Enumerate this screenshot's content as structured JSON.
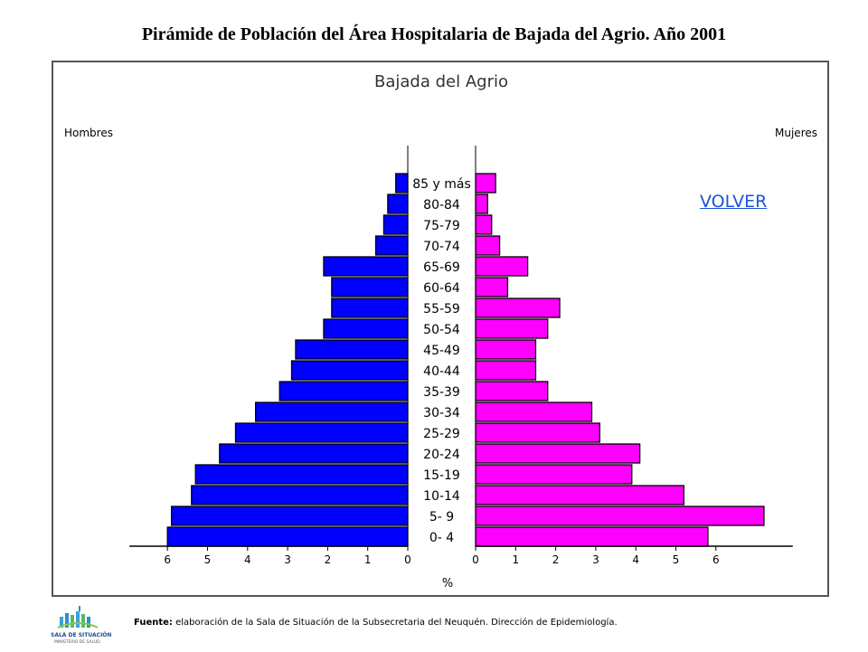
{
  "slide": {
    "title": "Pirámide de Población del Área Hospitalaria de Bajada del Agrio. Año 2001",
    "volver_label": "VOLVER",
    "footer_label": "Fuente:",
    "footer_text": " elaboración de la Sala de Situación de la Subsecretaria del Neuquén. Dirección de Epidemiología.",
    "logo_text": "SALA DE SITUACIÓN",
    "logo_subtext": "MINISTERIO DE SALUD"
  },
  "colors": {
    "men": "#0000ff",
    "women": "#ff00ff",
    "link": "#1a56d6"
  },
  "chart_data": {
    "type": "bar",
    "orientation": "horizontal-pyramid",
    "title": "Bajada del Agrio",
    "left_label": "Hombres",
    "right_label": "Mujeres",
    "xlabel": "%",
    "xlim": [
      0,
      6
    ],
    "xticks": [
      0,
      1,
      2,
      3,
      4,
      5,
      6
    ],
    "categories": [
      "0- 4",
      "5- 9",
      "10-14",
      "15-19",
      "20-24",
      "25-29",
      "30-34",
      "35-39",
      "40-44",
      "45-49",
      "50-54",
      "55-59",
      "60-64",
      "65-69",
      "70-74",
      "75-79",
      "80-84",
      "85 y más"
    ],
    "series": [
      {
        "name": "Hombres",
        "values": [
          6.0,
          5.9,
          5.4,
          5.3,
          4.7,
          4.3,
          3.8,
          3.2,
          2.9,
          2.8,
          2.1,
          1.9,
          1.9,
          2.1,
          0.8,
          0.6,
          0.5,
          0.3
        ]
      },
      {
        "name": "Mujeres",
        "values": [
          5.8,
          7.2,
          5.2,
          3.9,
          4.1,
          3.1,
          2.9,
          1.8,
          1.5,
          1.5,
          1.8,
          2.1,
          0.8,
          1.3,
          0.6,
          0.4,
          0.3,
          0.5
        ]
      }
    ]
  }
}
